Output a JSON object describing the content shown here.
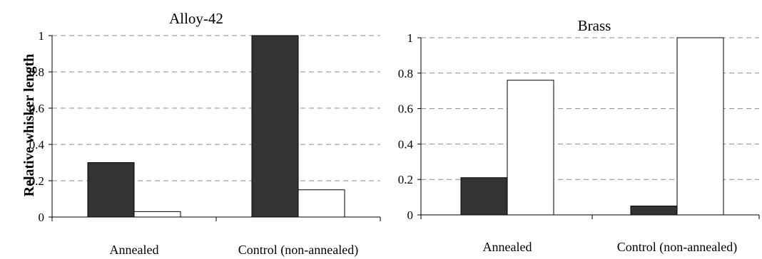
{
  "chart_data": [
    {
      "type": "bar",
      "title": "Alloy-42",
      "ylabel": "Relative whisker length",
      "xlabel": "",
      "categories": [
        "Annealed",
        "Control (non-annealed)"
      ],
      "series": [
        {
          "color": "#333333",
          "values": [
            0.3,
            1.0
          ]
        },
        {
          "color": "#ffffff",
          "values": [
            0.03,
            0.15
          ]
        }
      ],
      "ylim": [
        0,
        1
      ],
      "yticks": [
        "0",
        "0.2",
        "0.4",
        "0.6",
        "0.8",
        "1"
      ],
      "grid": true
    },
    {
      "type": "bar",
      "title": "Brass",
      "ylabel": "",
      "xlabel": "",
      "categories": [
        "Annealed",
        "Control (non-annealed)"
      ],
      "series": [
        {
          "color": "#333333",
          "values": [
            0.21,
            0.05
          ]
        },
        {
          "color": "#ffffff",
          "values": [
            0.76,
            1.0
          ]
        }
      ],
      "ylim": [
        0,
        1
      ],
      "yticks": [
        "0",
        "0.2",
        "0.4",
        "0.6",
        "0.8",
        "1"
      ],
      "grid": true
    }
  ]
}
